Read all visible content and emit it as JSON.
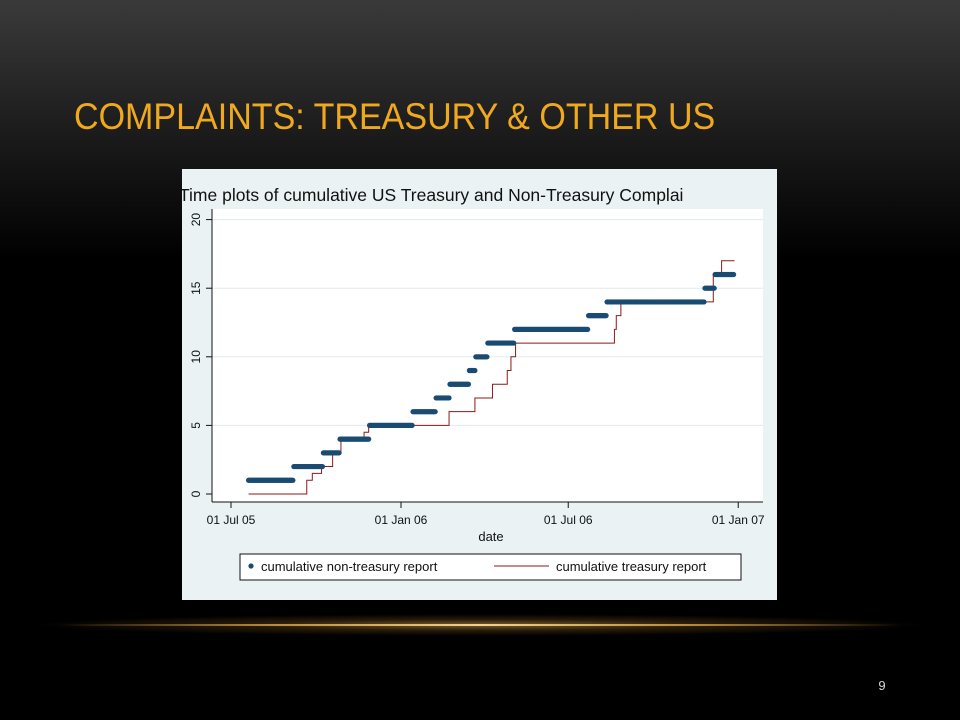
{
  "slide": {
    "title": "COMPLAINTS: TREASURY & OTHER US",
    "page_number": "9"
  },
  "colors": {
    "title": "#f0a81e",
    "non_treasury": "#1a4b73",
    "treasury": "#8b1a1a",
    "plot_bg": "#ffffff",
    "frame_bg": "#eaf2f3"
  },
  "chart_data": {
    "type": "scatter",
    "title": "Time plots of cumulative US Treasury and Non-Treasury Complai",
    "xlabel": "date",
    "ylabel": "",
    "x_ticks": [
      "01 Jul 05",
      "01 Jan 06",
      "01 Jul 06",
      "01 Jan 07"
    ],
    "x_tick_dates": [
      "2005-07-01",
      "2006-01-01",
      "2006-07-01",
      "2007-01-01"
    ],
    "y_ticks": [
      "0",
      "5",
      "10",
      "15",
      "20"
    ],
    "ylim": [
      0,
      20
    ],
    "xlim": [
      "2005-06-01",
      "2007-01-06"
    ],
    "grid": true,
    "legend_position": "bottom",
    "series": [
      {
        "name": "cumulative non-treasury report",
        "style": "markers",
        "x": [
          "2005-07-20",
          "2005-09-07",
          "2005-10-09",
          "2005-10-27",
          "2005-11-28",
          "2006-01-14",
          "2006-02-08",
          "2006-02-23",
          "2006-03-16",
          "2006-03-23",
          "2006-04-05",
          "2006-05-04",
          "2006-07-23",
          "2006-08-12",
          "2006-11-26",
          "2006-12-07"
        ],
        "y": [
          1,
          2,
          3,
          4,
          5,
          6,
          7,
          8,
          9,
          10,
          11,
          12,
          13,
          14,
          15,
          16
        ],
        "end": "2006-12-28"
      },
      {
        "name": "cumulative treasury report",
        "style": "step-line",
        "x": [
          "2005-07-20",
          "2005-09-21",
          "2005-09-27",
          "2005-10-07",
          "2005-10-19",
          "2005-10-28",
          "2005-11-22",
          "2005-11-27",
          "2006-02-22",
          "2006-03-22",
          "2006-04-10",
          "2006-04-26",
          "2006-04-30",
          "2006-05-05",
          "2006-08-20",
          "2006-08-22",
          "2006-08-27",
          "2006-12-05",
          "2006-12-14"
        ],
        "y": [
          0,
          1,
          1.5,
          2,
          3,
          4,
          4.5,
          5,
          6,
          7,
          8,
          9,
          10,
          11,
          12,
          13,
          14,
          16,
          17
        ],
        "end": "2006-12-28"
      }
    ]
  }
}
